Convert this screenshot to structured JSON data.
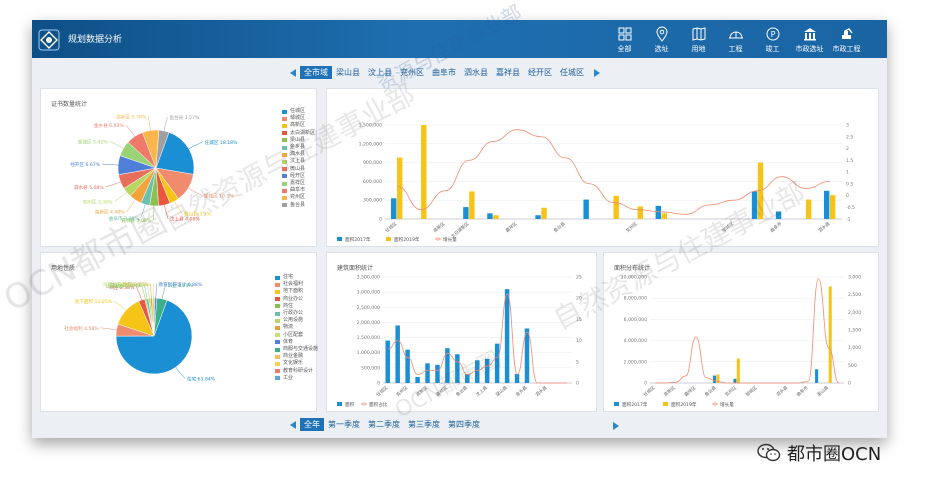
{
  "app": {
    "title": "规划数据分析"
  },
  "nav": [
    {
      "label": "全部",
      "icon": "grid-icon"
    },
    {
      "label": "选址",
      "icon": "location-pin-icon"
    },
    {
      "label": "用地",
      "icon": "map-book-icon"
    },
    {
      "label": "工程",
      "icon": "hard-hat-icon"
    },
    {
      "label": "竣工",
      "icon": "stamp-icon"
    },
    {
      "label": "市政选址",
      "icon": "government-building-icon"
    },
    {
      "label": "市政工程",
      "icon": "excavator-icon"
    }
  ],
  "districts": [
    "全市域",
    "梁山县",
    "汶上县",
    "兖州区",
    "曲阜市",
    "泗水县",
    "嘉祥县",
    "经开区",
    "任城区"
  ],
  "quarters": [
    "全年",
    "第一季度",
    "第二季度",
    "第三季度",
    "第四季度"
  ],
  "panels": {
    "cert": "证书数量统计",
    "region": "用地性质",
    "build": "建筑面积统计",
    "area": "面积分布统计"
  },
  "colors": {
    "bar_blue": "#1b8fd3",
    "bar_yellow": "#f6c416",
    "line_orange": "#f08b6e",
    "tab_active": "#1f72b8",
    "topbar": "#1a64a3"
  },
  "pie1": {
    "legend": [
      "任城区",
      "邹城区",
      "高新区",
      "太白湖新区",
      "梁山县",
      "金乡县",
      "泗水县",
      "汶上县",
      "微山县",
      "经开区",
      "嘉祥区",
      "曲阜市",
      "兖州区",
      "鱼台县"
    ],
    "labels": [
      "任城区 18.18%",
      "邹城区 10.1%",
      "微山县 3.3%",
      "汶上县 4.08%",
      "嘉祥县 3.08%",
      "曲阜市 3.08%",
      "高新区 4.48%",
      "兖州区 3.36%",
      "泗水县 5.08%",
      "经开区 6.67%",
      "邹城区 5.42%",
      "金乡县 6.03%",
      "高新区 5.78%",
      "鱼台县 3.57%"
    ]
  },
  "pie2": {
    "legend": [
      "住宅",
      "社会福利",
      "地下面积",
      "商业办公",
      "商住",
      "行政办公",
      "公用设施",
      "物流",
      "小区配套",
      "体育",
      "商服与交通设施",
      "商业金融",
      "文化娱乐",
      "教育科研设计",
      "工业"
    ],
    "labels": [
      "住宅 61.84%",
      "社会福利 4.58%",
      "地下面积 11.85%",
      "商住 2.38%",
      "公用设施 0.47%",
      "行政办公 0.94%",
      "小区配套 0.72%",
      "体育 0.78%",
      "商服与交通设施 0.84%",
      "教育科研设计 0.88%",
      "工业 3.84%"
    ]
  },
  "chart_data": [
    {
      "type": "bar",
      "title": "",
      "x_labels": [
        "任城区",
        "",
        "高新区",
        "太白湖新区",
        "",
        "嘉祥区",
        "",
        "鱼台县",
        "",
        "",
        "兖州区",
        "",
        "",
        "",
        "邹城区",
        "",
        "曲阜市",
        "",
        "泗水县"
      ],
      "ylim": [
        0,
        1500000
      ],
      "y_ticks": [
        "1,500,000",
        "1,200,000",
        "900,000",
        "600,000",
        "300,000",
        "0"
      ],
      "y2lim": [
        -1,
        3
      ],
      "y2_ticks": [
        "3",
        "2.5",
        "2",
        "1.5",
        "1",
        "0.5",
        "0",
        "-0.5",
        "-1"
      ],
      "series": [
        {
          "name": "面积2017年",
          "values": [
            330000,
            0,
            0,
            190000,
            90000,
            0,
            60000,
            0,
            310000,
            0,
            0,
            210000,
            0,
            0,
            0,
            440000,
            120000,
            0,
            450000
          ]
        },
        {
          "name": "面积2019年",
          "values": [
            980000,
            1500000,
            0,
            440000,
            60000,
            0,
            180000,
            0,
            0,
            370000,
            200000,
            90000,
            0,
            0,
            0,
            900000,
            0,
            310000,
            380000
          ]
        },
        {
          "name": "增长量",
          "values": [
            0.4,
            -0.6,
            0.2,
            1.5,
            2.3,
            2.8,
            2.5,
            1.6,
            0.5,
            -0.3,
            -0.6,
            -0.7,
            -0.8,
            -0.4,
            -0.2,
            0.2,
            0.8,
            0.3,
            0.6
          ]
        }
      ]
    },
    {
      "type": "bar",
      "title": "建筑面积统计",
      "x_labels": [
        "任城区",
        "",
        "兖州区",
        "",
        "高新区",
        "",
        "嘉祥区",
        "",
        "鱼台县",
        "",
        "汶上县",
        "",
        "梁山县",
        "",
        "金乡县",
        "",
        "泗水县",
        "",
        ""
      ],
      "ylim": [
        0,
        3500000
      ],
      "y_ticks": [
        "3,500,000",
        "3,000,000",
        "2,500,000",
        "2,000,000",
        "1,500,000",
        "1,000,000",
        "500,000",
        "0"
      ],
      "y2lim": [
        0,
        25
      ],
      "y2_ticks": [
        "25",
        "20",
        "15",
        "10",
        "5",
        "0"
      ],
      "series": [
        {
          "name": "面积",
          "values": [
            1400000,
            1900000,
            1100000,
            200000,
            650000,
            600000,
            1150000,
            950000,
            300000,
            750000,
            800000,
            1300000,
            3100000,
            300000,
            1800000,
            0,
            0,
            0,
            0
          ]
        },
        {
          "name": "面积占比",
          "values": [
            8,
            10,
            6,
            2,
            3,
            3,
            7,
            5,
            2,
            3,
            4,
            6,
            21,
            2,
            12,
            0,
            0,
            0,
            0
          ]
        }
      ]
    },
    {
      "type": "bar",
      "title": "面积分布统计",
      "x_labels": [
        "任城区",
        "",
        "高新区",
        "",
        "嘉祥区",
        "",
        "鱼台县",
        "",
        "兖州区",
        "",
        "邹城区",
        "",
        "",
        "泗水县",
        "",
        "曲阜市",
        "",
        "梁山县",
        ""
      ],
      "ylim": [
        0,
        10000000
      ],
      "y_ticks": [
        "10,000,000",
        "8,000,000",
        "6,000,000",
        "4,000,000",
        "2,000,000",
        "0"
      ],
      "y2lim": [
        0,
        3000
      ],
      "y2_ticks": [
        "3,000",
        "2,500",
        "2,000",
        "1,500",
        "1,000",
        "500",
        "0"
      ],
      "series": [
        {
          "name": "面积2017年",
          "values": [
            0,
            0,
            0,
            0,
            0,
            0,
            700000,
            0,
            400000,
            0,
            0,
            0,
            0,
            0,
            0,
            0,
            1300000,
            0,
            0
          ]
        },
        {
          "name": "面积2019年",
          "values": [
            0,
            0,
            0,
            0,
            0,
            0,
            800000,
            0,
            2300000,
            0,
            0,
            0,
            0,
            0,
            0,
            0,
            0,
            9100000,
            0
          ]
        },
        {
          "name": "增长量",
          "values": [
            0,
            0,
            20,
            200,
            1300,
            150,
            50,
            0,
            0,
            0,
            0,
            0,
            0,
            0,
            0,
            50,
            2950,
            1000,
            0
          ]
        }
      ]
    }
  ],
  "watermarks": [
    "资源与住建事业部",
    "OCN都市圈",
    "自然资源与住建事业部",
    "自然资源与住建事业部",
    "OCN都市圈"
  ],
  "brand": "都市圈OCN"
}
